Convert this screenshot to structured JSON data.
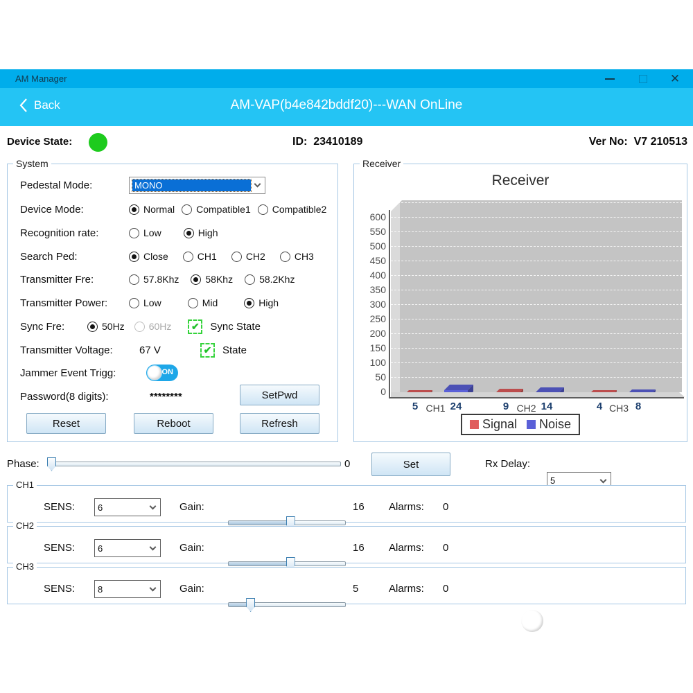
{
  "window": {
    "title": "AM Manager"
  },
  "header": {
    "back_label": "Back",
    "title": "AM-VAP(b4e842bddf20)---WAN OnLine"
  },
  "status": {
    "device_state_label": "Device State:",
    "state_color": "#1dcb1d",
    "id_label": "ID:",
    "id_value": "23410189",
    "ver_label": "Ver No:",
    "ver_value": "V7 210513"
  },
  "system": {
    "title": "System",
    "pedestal": {
      "label": "Pedestal Mode:",
      "value": "MONO"
    },
    "device_mode": {
      "label": "Device Mode:",
      "options": [
        {
          "label": "Normal",
          "selected": true
        },
        {
          "label": "Compatible1",
          "selected": false
        },
        {
          "label": "Compatible2",
          "selected": false
        }
      ]
    },
    "recognition": {
      "label": "Recognition rate:",
      "options": [
        {
          "label": "Low",
          "selected": false
        },
        {
          "label": "High",
          "selected": true
        }
      ]
    },
    "search_ped": {
      "label": "Search Ped:",
      "options": [
        {
          "label": "Close",
          "selected": true
        },
        {
          "label": "CH1",
          "selected": false
        },
        {
          "label": "CH2",
          "selected": false
        },
        {
          "label": "CH3",
          "selected": false
        }
      ]
    },
    "trans_fre": {
      "label": "Transmitter Fre:",
      "options": [
        {
          "label": "57.8Khz",
          "selected": false
        },
        {
          "label": "58Khz",
          "selected": true
        },
        {
          "label": "58.2Khz",
          "selected": false
        }
      ]
    },
    "trans_power": {
      "label": "Transmitter Power:",
      "options": [
        {
          "label": "Low",
          "selected": false
        },
        {
          "label": "Mid",
          "selected": false
        },
        {
          "label": "High",
          "selected": true
        }
      ]
    },
    "sync_fre": {
      "label": "Sync Fre:",
      "options": [
        {
          "label": "50Hz",
          "selected": true
        },
        {
          "label": "60Hz",
          "selected": false,
          "disabled": true
        }
      ],
      "check_label": "Sync State"
    },
    "trans_voltage": {
      "label": "Transmitter Voltage:",
      "value": "67 V",
      "check_label": "State"
    },
    "jammer": {
      "label": "Jammer Event Trigg:",
      "state": "ON"
    },
    "password": {
      "label": "Password(8 digits):",
      "value": "********",
      "button": "SetPwd"
    },
    "buttons": {
      "reset": "Reset",
      "reboot": "Reboot",
      "refresh": "Refresh"
    }
  },
  "receiver": {
    "box_title": "Receiver"
  },
  "chart_data": {
    "type": "bar",
    "title": "Receiver",
    "categories": [
      "CH1",
      "CH2",
      "CH3"
    ],
    "series": [
      {
        "name": "Signal",
        "color": "#e05c5c",
        "values": [
          5,
          9,
          4
        ]
      },
      {
        "name": "Noise",
        "color": "#5a60d8",
        "values": [
          24,
          14,
          8
        ]
      }
    ],
    "ylim": [
      0,
      650
    ],
    "ytick_step": 50,
    "grid": true,
    "legend_position": "bottom"
  },
  "phase": {
    "label": "Phase:",
    "value": 0,
    "set_button": "Set",
    "rx_delay_label": "Rx Delay:",
    "rx_delay_value": "5"
  },
  "channels": [
    {
      "name": "CH1",
      "sens_label": "SENS:",
      "sens": "6",
      "gain_label": "Gain:",
      "gain": 16,
      "alarms_label": "Alarms:",
      "alarms": "0",
      "toggle": "ON"
    },
    {
      "name": "CH2",
      "sens_label": "SENS:",
      "sens": "6",
      "gain_label": "Gain:",
      "gain": 16,
      "alarms_label": "Alarms:",
      "alarms": "0",
      "toggle": "ON"
    },
    {
      "name": "CH3",
      "sens_label": "SENS:",
      "sens": "8",
      "gain_label": "Gain:",
      "gain": 5,
      "alarms_label": "Alarms:",
      "alarms": "0",
      "toggle": "ON"
    }
  ]
}
